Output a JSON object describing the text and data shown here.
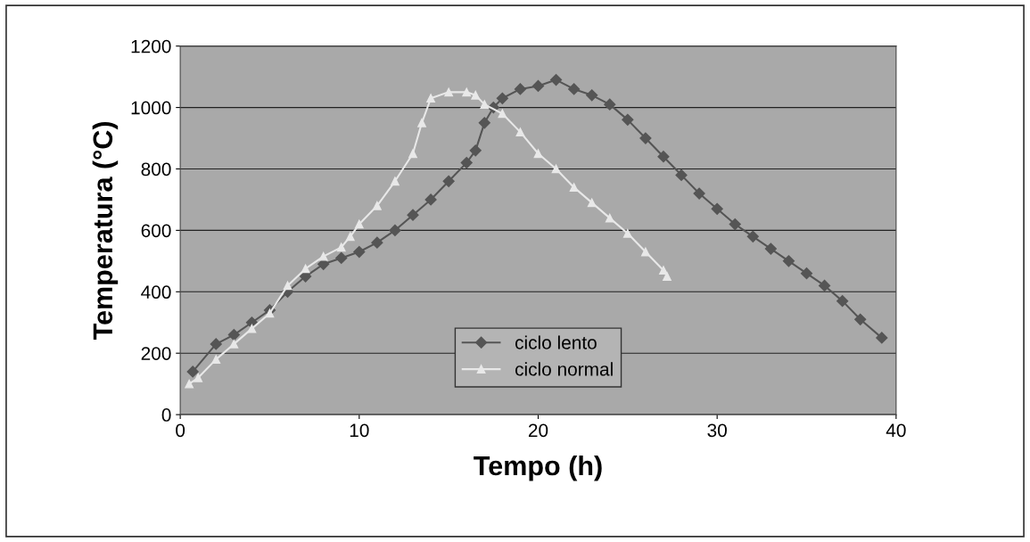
{
  "chart_data": {
    "type": "line",
    "xlabel": "Tempo (h)",
    "ylabel": "Temperatura (°C)",
    "xlim": [
      0,
      40
    ],
    "xticks": [
      0,
      10,
      20,
      30,
      40
    ],
    "ylim": [
      0,
      1200
    ],
    "yticks": [
      0,
      200,
      400,
      600,
      800,
      1000,
      1200
    ],
    "grid": "y",
    "legend": "bottom",
    "line_style": "solid",
    "series": [
      {
        "name": "ciclo lento",
        "color": "#555555",
        "marker": "diamond",
        "x": [
          0.7,
          2,
          3,
          4,
          5,
          6,
          7,
          8,
          9,
          10,
          11,
          12,
          13,
          14,
          15,
          16,
          16.5,
          17,
          17.5,
          18,
          19,
          20,
          21,
          22,
          23,
          24,
          25,
          26,
          27,
          28,
          29,
          30,
          31,
          32,
          33,
          34,
          35,
          36,
          37,
          38,
          39.2
        ],
        "values": [
          140,
          230,
          260,
          300,
          340,
          400,
          450,
          490,
          510,
          530,
          560,
          600,
          650,
          700,
          760,
          820,
          860,
          950,
          1000,
          1030,
          1060,
          1070,
          1090,
          1060,
          1040,
          1010,
          960,
          900,
          840,
          780,
          720,
          670,
          620,
          580,
          540,
          500,
          460,
          420,
          370,
          310,
          250
        ]
      },
      {
        "name": "ciclo normal",
        "color": "#e8e8e8",
        "marker": "triangle",
        "x": [
          0.5,
          1,
          2,
          3,
          4,
          5,
          6,
          7,
          8,
          9,
          9.5,
          10,
          11,
          12,
          13,
          13.5,
          14,
          15,
          16,
          16.5,
          17,
          18,
          19,
          20,
          21,
          22,
          23,
          24,
          25,
          26,
          27,
          27.2
        ],
        "values": [
          100,
          120,
          180,
          230,
          280,
          330,
          420,
          475,
          515,
          545,
          580,
          620,
          680,
          760,
          850,
          950,
          1030,
          1050,
          1050,
          1040,
          1010,
          980,
          920,
          850,
          800,
          740,
          690,
          640,
          590,
          530,
          470,
          450
        ]
      }
    ]
  }
}
